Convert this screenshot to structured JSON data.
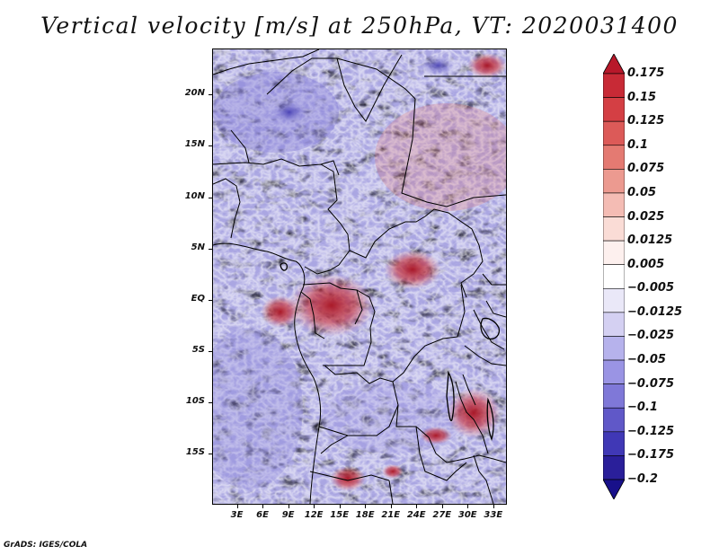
{
  "title": "Vertical velocity [m/s] at 250hPa, VT: 2020031400",
  "credit": "GrADS: IGES/COLA",
  "map": {
    "variable": "Vertical velocity",
    "units": "m/s",
    "level": "250hPa",
    "valid_time": "2020031400",
    "lat_labels": [
      "20N",
      "15N",
      "10N",
      "5N",
      "EQ",
      "5S",
      "10S",
      "15S"
    ],
    "lon_labels": [
      "3E",
      "6E",
      "9E",
      "12E",
      "15E",
      "18E",
      "21E",
      "24E",
      "27E",
      "30E",
      "33E"
    ],
    "lat_values": [
      20,
      15,
      10,
      5,
      0,
      -5,
      -10,
      -15
    ],
    "lon_values": [
      3,
      6,
      9,
      12,
      15,
      18,
      21,
      24,
      27,
      30,
      33
    ],
    "lat_range": [
      -20,
      24.5
    ],
    "lon_range": [
      0.1,
      34.6
    ]
  },
  "colorbar": {
    "labels": [
      "0.175",
      "0.15",
      "0.125",
      "0.1",
      "0.075",
      "0.05",
      "0.025",
      "0.0125",
      "0.005",
      "−0.005",
      "−0.0125",
      "−0.025",
      "−0.05",
      "−0.075",
      "−0.1",
      "−0.125",
      "−0.175",
      "−0.2"
    ],
    "colors": [
      "#b8182a",
      "#c82a36",
      "#d43f44",
      "#dc5a58",
      "#e47a72",
      "#ec9a90",
      "#f4bcb4",
      "#fadcd6",
      "#fdf0ee",
      "#ffffff",
      "#eae8f8",
      "#d4d0f2",
      "#b6b2ec",
      "#9a94e4",
      "#7f78d8",
      "#6058c8",
      "#4038b6",
      "#2a1f9a",
      "#18108a"
    ]
  },
  "colors": {
    "ocean_background": "#e9e6f3",
    "red_hot": "#c02530",
    "blue_cold": "#3a32b2",
    "boundary": "#000000"
  }
}
